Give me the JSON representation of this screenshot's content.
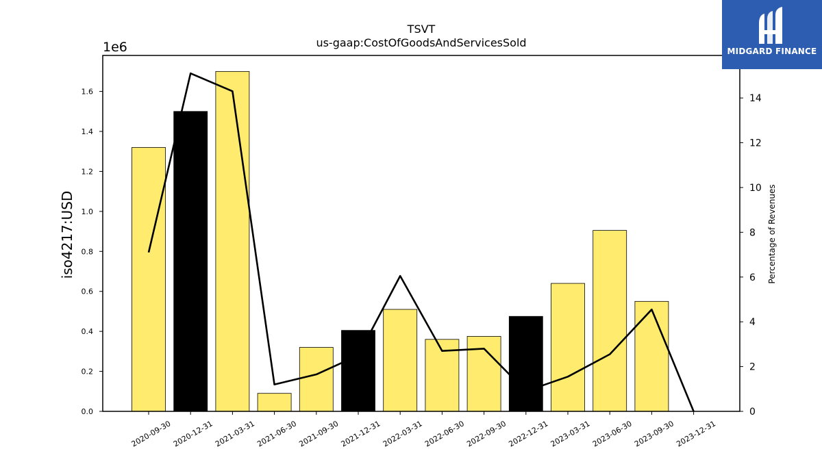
{
  "chart_data": {
    "type": "bar",
    "title": "TSVT",
    "subtitle": "us-gaap:CostOfGoodsAndServicesSold",
    "ylabel": "iso4217:USD",
    "y_offset_label": "1e6",
    "y2label": "Percentage of Revenues",
    "categories": [
      "2020-09-30",
      "2020-12-31",
      "2021-03-31",
      "2021-06-30",
      "2021-09-30",
      "2021-12-31",
      "2022-03-31",
      "2022-06-30",
      "2022-09-30",
      "2022-12-31",
      "2023-03-31",
      "2023-06-30",
      "2023-09-30",
      "2023-12-31"
    ],
    "ylim": [
      0,
      1.78
    ],
    "y2lim": [
      0,
      15.9
    ],
    "yticks": [
      "0.0",
      "0.2",
      "0.4",
      "0.6",
      "0.8",
      "1.0",
      "1.2",
      "1.4",
      "1.6"
    ],
    "y2ticks": [
      "0",
      "2",
      "4",
      "6",
      "8",
      "10",
      "12",
      "14"
    ],
    "series": [
      {
        "values": [
          1.32,
          1.5,
          1.7,
          0.09,
          0.32,
          0.405,
          0.51,
          0.36,
          0.375,
          0.475,
          0.64,
          0.905,
          0.55,
          null
        ],
        "colors": [
          "#ffec6e",
          "#000000",
          "#ffec6e",
          "#ffec6e",
          "#ffec6e",
          "#000000",
          "#ffec6e",
          "#ffec6e",
          "#ffec6e",
          "#000000",
          "#ffec6e",
          "#ffec6e",
          "#ffec6e",
          "#ffec6e"
        ]
      },
      {
        "type": "line",
        "axis": "right",
        "values": [
          7.1,
          15.1,
          14.3,
          1.2,
          1.65,
          2.5,
          6.05,
          2.7,
          2.8,
          0.9,
          1.55,
          2.55,
          4.55,
          0.0
        ],
        "color": "#000000"
      }
    ],
    "grid": false,
    "legend": "none"
  },
  "logo": {
    "text": "MIDGARD FINANCE",
    "color": "#2d5db0"
  }
}
